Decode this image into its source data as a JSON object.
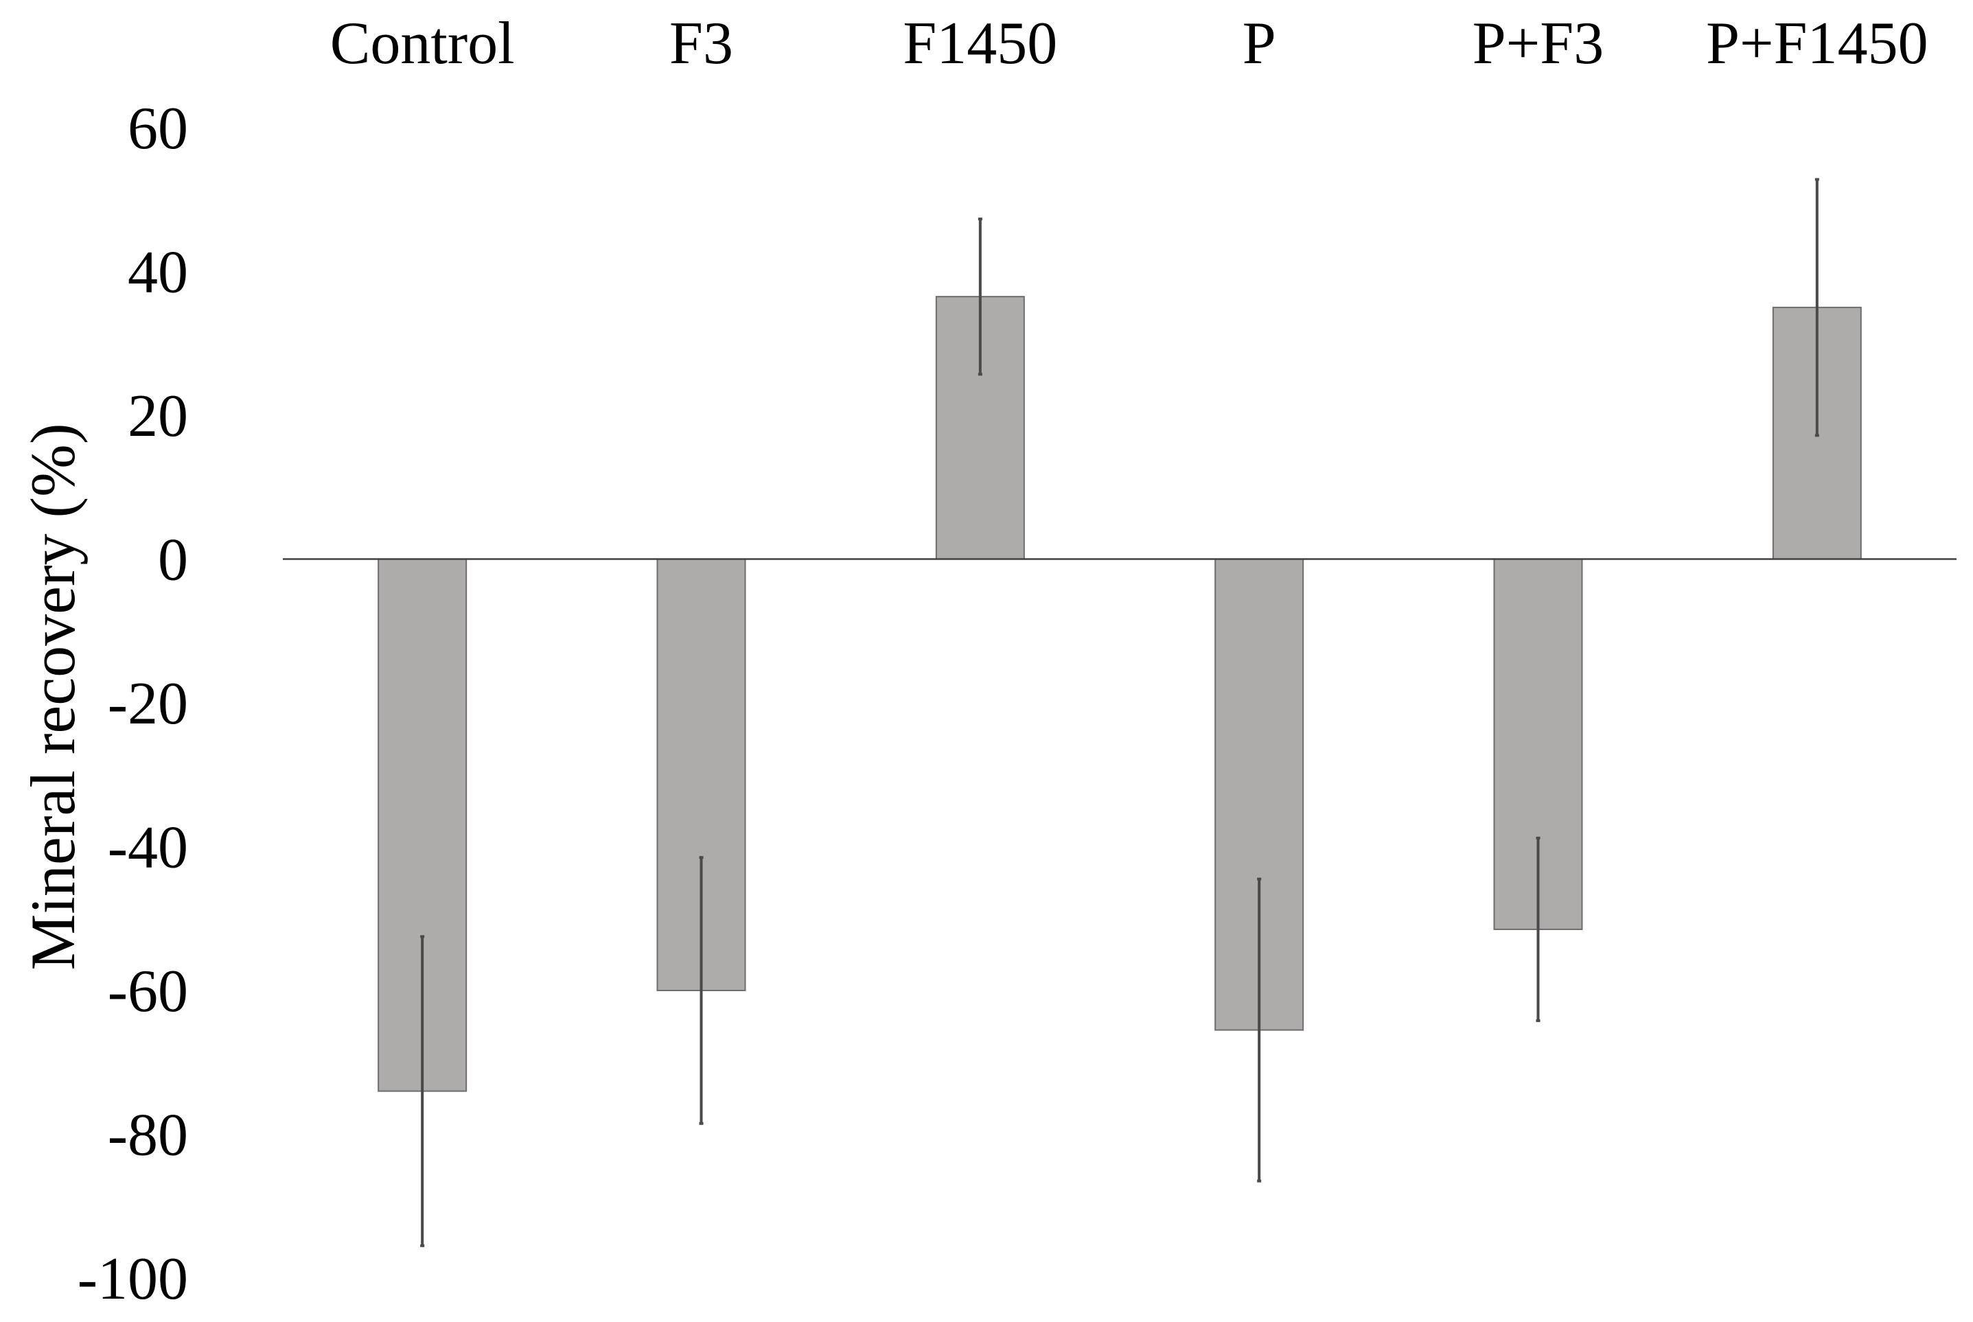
{
  "chart_data": {
    "type": "bar",
    "title": "",
    "xlabel": "",
    "ylabel": "Mineral recovery (%)",
    "categories": [
      "Control",
      "F3",
      "F1450",
      "P",
      "P+F3",
      "P+F1450"
    ],
    "values": [
      -74,
      -60,
      36.5,
      -65.5,
      -51.5,
      35
    ],
    "error": [
      21.5,
      18.5,
      10.8,
      21,
      12.7,
      17.8
    ],
    "ylim": [
      -100,
      60
    ],
    "yticks": [
      60,
      40,
      20,
      0,
      -20,
      -40,
      -60,
      -80,
      -100
    ],
    "ytick_labels": [
      "60",
      "40",
      "20",
      "0",
      "-20",
      "-40",
      "-60",
      "-80",
      "-100"
    ],
    "category_axis_position": "top",
    "legend": "none",
    "grid": false,
    "colors": {
      "bar_fill": "#aeabab",
      "bar_stroke": "#6f6c6c",
      "error_bar": "#4a4a4a",
      "zero_line": "#404040",
      "text": "#000000"
    }
  }
}
